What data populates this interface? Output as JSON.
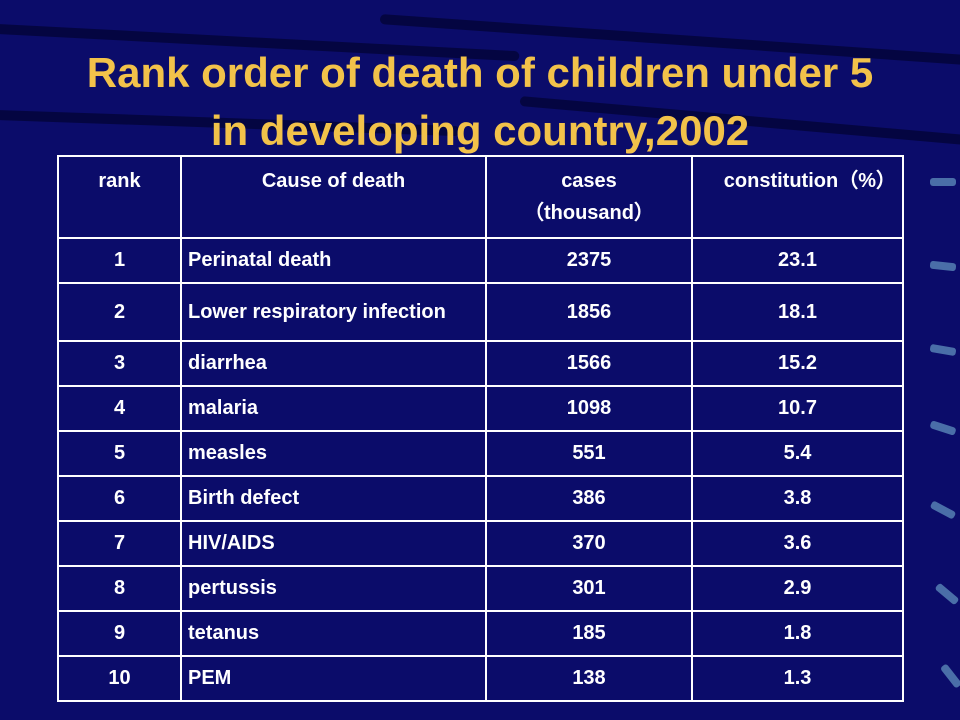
{
  "title": {
    "line1": "Rank order of death of children under 5",
    "line2": "in developing country,2002"
  },
  "table": {
    "headers": {
      "rank": "rank",
      "cause": "Cause of death",
      "cases_line1": "cases",
      "cases_line2": "（thousand）",
      "constitution": "constitution（%）"
    },
    "rows": [
      {
        "rank": "1",
        "cause": "Perinatal death",
        "cases": "2375",
        "pct": "23.1"
      },
      {
        "rank": "2",
        "cause": "Lower respiratory infection",
        "cases": "1856",
        "pct": "18.1"
      },
      {
        "rank": "3",
        "cause": "diarrhea",
        "cases": "1566",
        "pct": "15.2"
      },
      {
        "rank": "4",
        "cause": "malaria",
        "cases": "1098",
        "pct": "10.7"
      },
      {
        "rank": "5",
        "cause": "measles",
        "cases": "551",
        "pct": "5.4"
      },
      {
        "rank": "6",
        "cause": "Birth defect",
        "cases": "386",
        "pct": "3.8"
      },
      {
        "rank": "7",
        "cause": "HIV/AIDS",
        "cases": "370",
        "pct": "3.6"
      },
      {
        "rank": "8",
        "cause": "pertussis",
        "cases": "301",
        "pct": "2.9"
      },
      {
        "rank": "9",
        "cause": "tetanus",
        "cases": "185",
        "pct": "1.8"
      },
      {
        "rank": "10",
        "cause": "PEM",
        "cases": "138",
        "pct": "1.3"
      }
    ]
  },
  "colors": {
    "background": "#0b0c6a",
    "title": "#f2c24a",
    "text": "#ffffff"
  }
}
